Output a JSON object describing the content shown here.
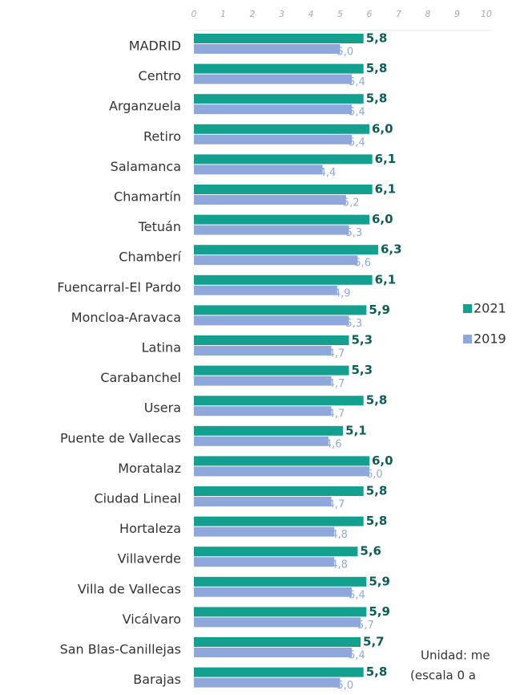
{
  "chart_data": {
    "type": "bar",
    "orientation": "horizontal",
    "categories": [
      "MADRID",
      "Centro",
      "Arganzuela",
      "Retiro",
      "Salamanca",
      "Chamartín",
      "Tetuán",
      "Chamberí",
      "Fuencarral-El Pardo",
      "Moncloa-Aravaca",
      "Latina",
      "Carabanchel",
      "Usera",
      "Puente de Vallecas",
      "Moratalaz",
      "Ciudad Lineal",
      "Hortaleza",
      "Villaverde",
      "Villa de Vallecas",
      "Vicálvaro",
      "San Blas-Canillejas",
      "Barajas"
    ],
    "series": [
      {
        "name": "2021",
        "color": "#14a08e",
        "values": [
          5.8,
          5.8,
          5.8,
          6.0,
          6.1,
          6.1,
          6.0,
          6.3,
          6.1,
          5.9,
          5.3,
          5.3,
          5.8,
          5.1,
          6.0,
          5.8,
          5.8,
          5.6,
          5.9,
          5.9,
          5.7,
          5.8
        ],
        "value_labels": [
          "5,8",
          "5,8",
          "5,8",
          "6,0",
          "6,1",
          "6,1",
          "6,0",
          "6,3",
          "6,1",
          "5,9",
          "5,3",
          "5,3",
          "5,8",
          "5,1",
          "6,0",
          "5,8",
          "5,8",
          "5,6",
          "5,9",
          "5,9",
          "5,7",
          "5,8"
        ]
      },
      {
        "name": "2019",
        "color": "#8fa8dc",
        "values": [
          5.0,
          5.4,
          5.4,
          5.4,
          4.4,
          5.2,
          5.3,
          5.6,
          4.9,
          5.3,
          4.7,
          4.7,
          4.7,
          4.6,
          6.0,
          4.7,
          4.8,
          4.8,
          5.4,
          5.7,
          5.4,
          5.0
        ],
        "value_labels": [
          "5,0",
          "5,4",
          "5,4",
          "5,4",
          "4,4",
          "5,2",
          "5,3",
          "5,6",
          "4,9",
          "5,3",
          "4,7",
          "4,7",
          "4,7",
          "4,6",
          "6,0",
          "4,7",
          "4,8",
          "4,8",
          "5,4",
          "5,7",
          "5,4",
          "5,0"
        ]
      }
    ],
    "xlim": [
      0,
      10
    ],
    "xticks": [
      0,
      1,
      2,
      3,
      4,
      5,
      6,
      7,
      8,
      9,
      10
    ],
    "annotations": [
      "Unidad: me",
      "(escala 0 a"
    ]
  }
}
